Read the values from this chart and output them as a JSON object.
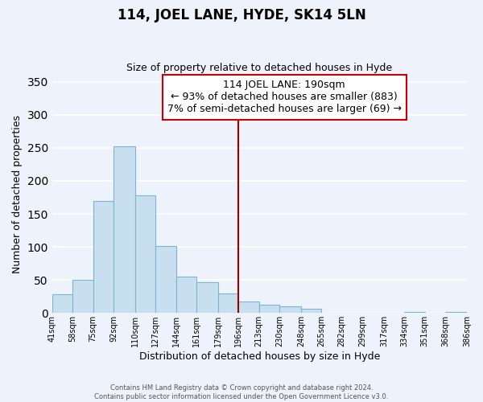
{
  "title": "114, JOEL LANE, HYDE, SK14 5LN",
  "subtitle": "Size of property relative to detached houses in Hyde",
  "xlabel": "Distribution of detached houses by size in Hyde",
  "ylabel": "Number of detached properties",
  "bar_color": "#c8dff0",
  "bar_edge_color": "#7fb3d3",
  "bg_color": "#eef2fb",
  "grid_color": "#ffffff",
  "bins": [
    41,
    58,
    75,
    92,
    110,
    127,
    144,
    161,
    179,
    196,
    213,
    230,
    248,
    265,
    282,
    299,
    317,
    334,
    351,
    368,
    386
  ],
  "values": [
    28,
    50,
    170,
    252,
    178,
    101,
    55,
    47,
    29,
    18,
    12,
    10,
    7,
    0,
    0,
    0,
    0,
    2,
    0,
    2
  ],
  "tick_labels": [
    "41sqm",
    "58sqm",
    "75sqm",
    "92sqm",
    "110sqm",
    "127sqm",
    "144sqm",
    "161sqm",
    "179sqm",
    "196sqm",
    "213sqm",
    "230sqm",
    "248sqm",
    "265sqm",
    "282sqm",
    "299sqm",
    "317sqm",
    "334sqm",
    "351sqm",
    "368sqm",
    "386sqm"
  ],
  "property_line_x": 196,
  "property_line_color": "#990000",
  "annotation_title": "114 JOEL LANE: 190sqm",
  "annotation_line1": "← 93% of detached houses are smaller (883)",
  "annotation_line2": "7% of semi-detached houses are larger (69) →",
  "annotation_box_color": "#ffffff",
  "annotation_box_edge": "#cc0000",
  "ylim": [
    0,
    360
  ],
  "yticks": [
    0,
    50,
    100,
    150,
    200,
    250,
    300,
    350
  ],
  "footnote1": "Contains HM Land Registry data © Crown copyright and database right 2024.",
  "footnote2": "Contains public sector information licensed under the Open Government Licence v3.0."
}
